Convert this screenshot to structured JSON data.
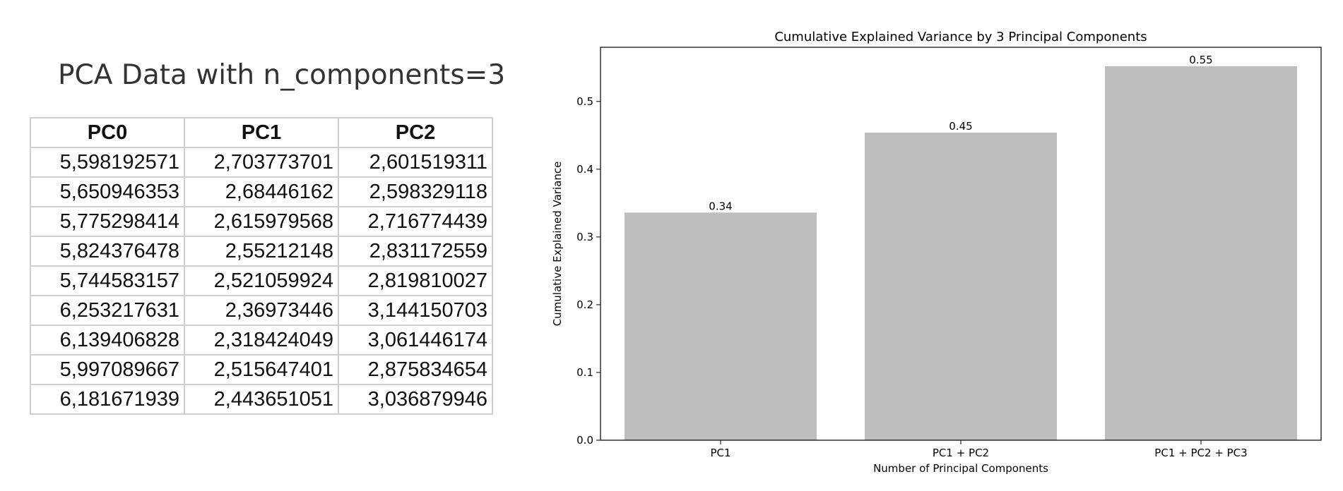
{
  "left_panel": {
    "title": "PCA Data with n_components=3",
    "columns": [
      "PC0",
      "PC1",
      "PC2"
    ],
    "rows": [
      [
        "5,598192571",
        "2,703773701",
        "2,601519311"
      ],
      [
        "5,650946353",
        "2,68446162",
        "2,598329118"
      ],
      [
        "5,775298414",
        "2,615979568",
        "2,716774439"
      ],
      [
        "5,824376478",
        "2,55212148",
        "2,831172559"
      ],
      [
        "5,744583157",
        "2,521059924",
        "2,819810027"
      ],
      [
        "6,253217631",
        "2,36973446",
        "3,144150703"
      ],
      [
        "6,139406828",
        "2,318424049",
        "3,061446174"
      ],
      [
        "5,997089667",
        "2,515647401",
        "2,875834654"
      ],
      [
        "6,181671939",
        "2,443651051",
        "3,036879946"
      ]
    ]
  },
  "chart_data": {
    "type": "bar",
    "title": "Cumulative Explained Variance by 3 Principal Components",
    "xlabel": "Number of Principal Components",
    "ylabel": "Cumulative Explained Variance",
    "categories": [
      "PC1",
      "PC1 + PC2",
      "PC1 + PC2 + PC3"
    ],
    "values": [
      0.336,
      0.454,
      0.552
    ],
    "data_labels": [
      "0.34",
      "0.45",
      "0.55"
    ],
    "ylim": [
      0,
      0.58
    ],
    "yticks": [
      0.0,
      0.1,
      0.2,
      0.3,
      0.4,
      0.5
    ],
    "ytick_labels": [
      "0.0",
      "0.1",
      "0.2",
      "0.3",
      "0.4",
      "0.5"
    ],
    "bar_color": "#bdbdbd",
    "grid": false,
    "legend": "none"
  }
}
